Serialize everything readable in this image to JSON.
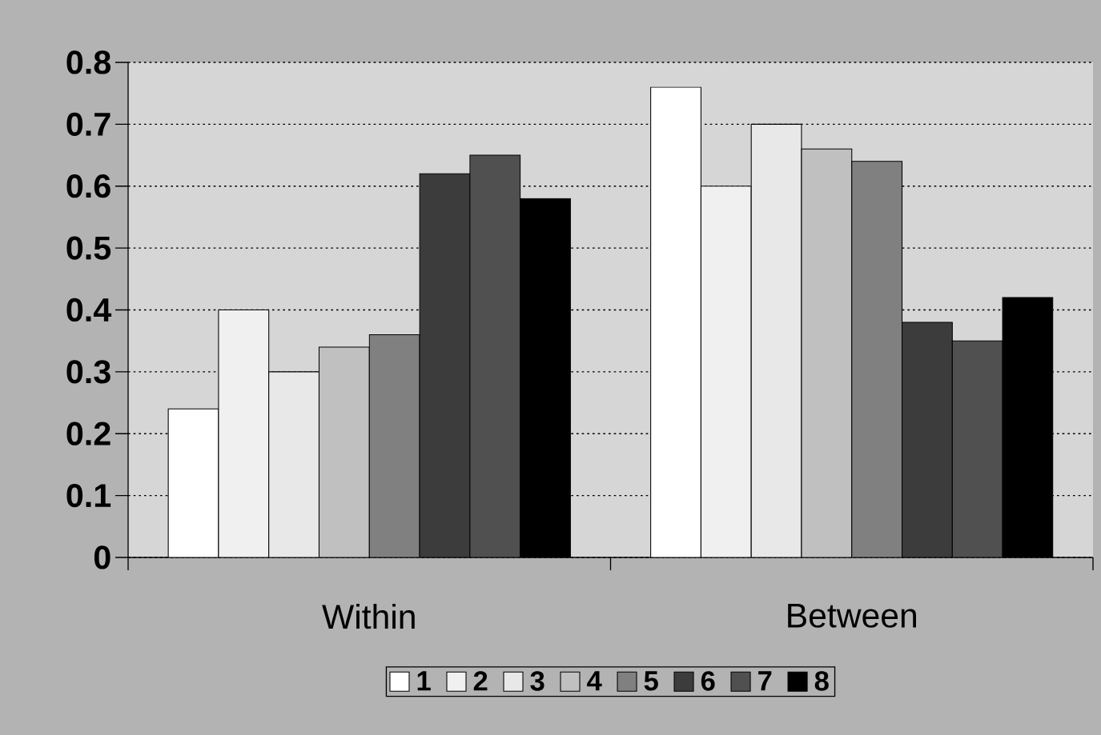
{
  "chart_data": {
    "type": "bar",
    "categories": [
      "Within",
      "Between"
    ],
    "series": [
      {
        "name": "1",
        "color": "#ffffff",
        "values": [
          0.24,
          0.76
        ]
      },
      {
        "name": "2",
        "color": "#f0f0f0",
        "values": [
          0.4,
          0.6
        ]
      },
      {
        "name": "3",
        "color": "#e8e8e8",
        "values": [
          0.3,
          0.7
        ]
      },
      {
        "name": "4",
        "color": "#c0c0c0",
        "values": [
          0.34,
          0.66
        ]
      },
      {
        "name": "5",
        "color": "#808080",
        "values": [
          0.36,
          0.64
        ]
      },
      {
        "name": "6",
        "color": "#3c3c3c",
        "values": [
          0.62,
          0.38
        ]
      },
      {
        "name": "7",
        "color": "#505050",
        "values": [
          0.65,
          0.35
        ]
      },
      {
        "name": "8",
        "color": "#000000",
        "values": [
          0.58,
          0.42
        ]
      }
    ],
    "ylim": [
      0,
      0.8
    ],
    "yticks": [
      0,
      0.1,
      0.2,
      0.3,
      0.4,
      0.5,
      0.6,
      0.7,
      0.8
    ],
    "grid": "y",
    "legend": "bottom"
  }
}
